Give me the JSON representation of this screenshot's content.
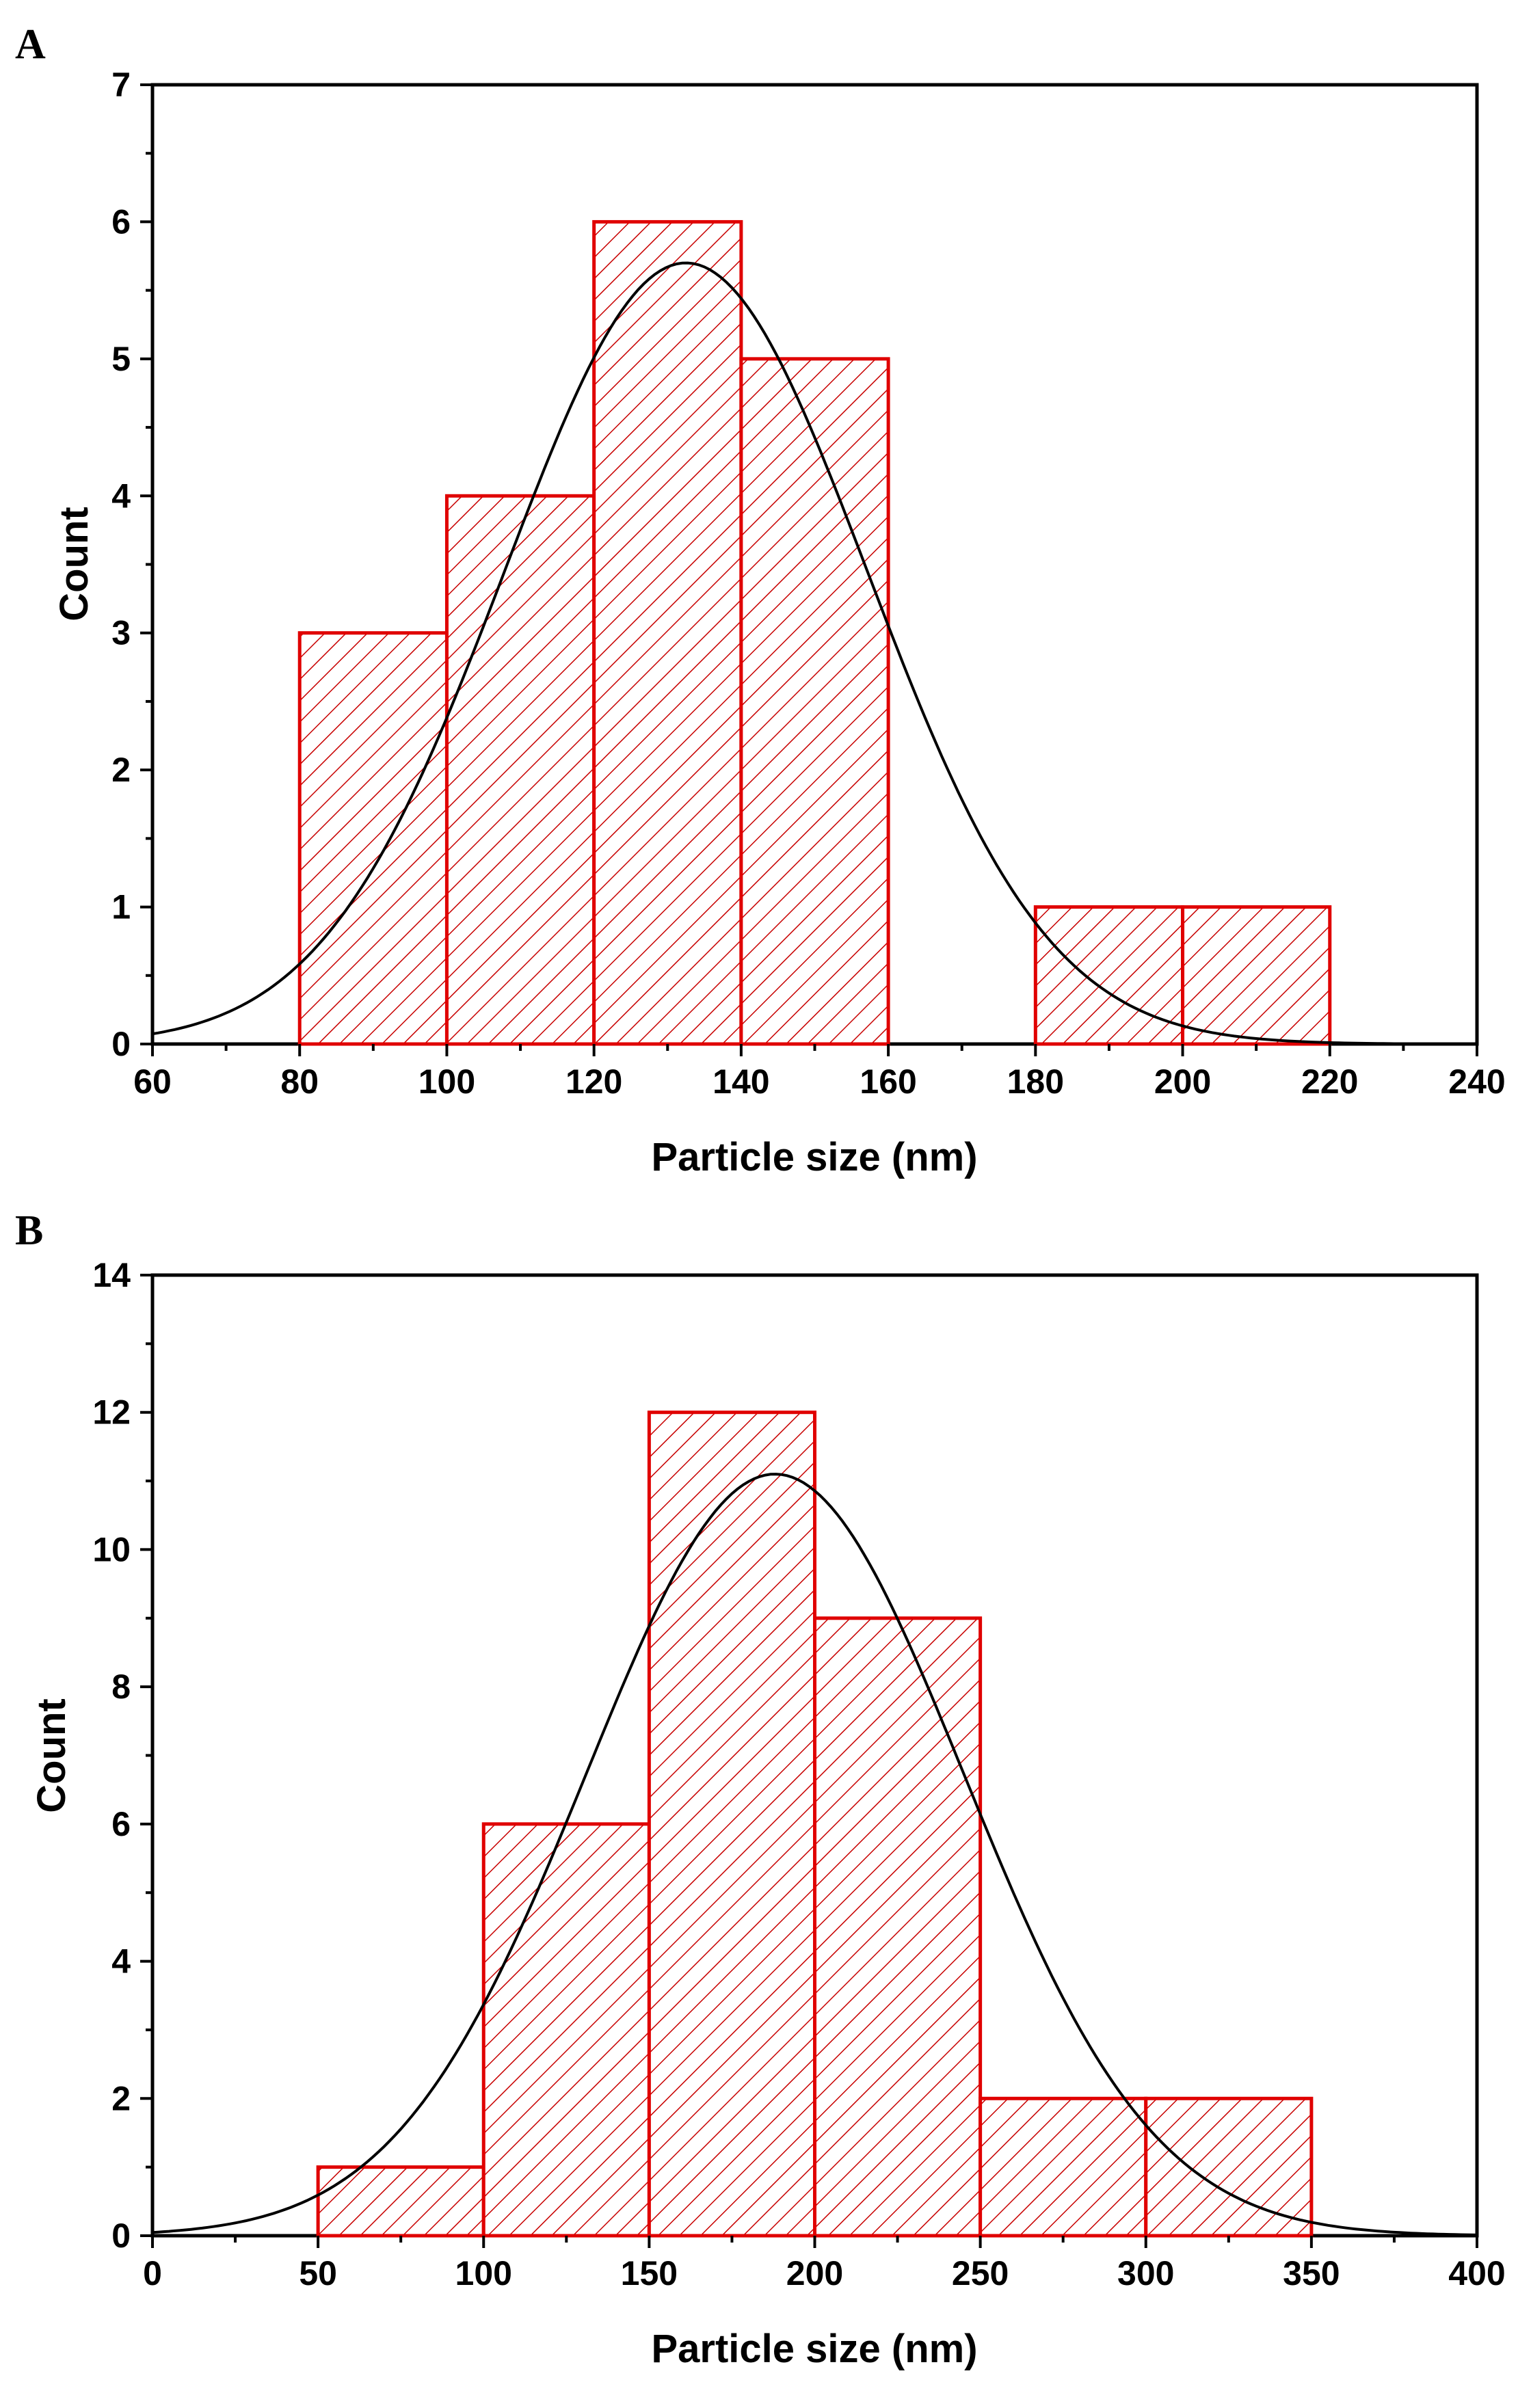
{
  "chart_data": [
    {
      "type": "bar",
      "panel_label": "A",
      "title": "",
      "xlabel": "Particle size (nm)",
      "ylabel": "Count",
      "xlim": [
        60,
        240
      ],
      "ylim": [
        0,
        7
      ],
      "xticks": [
        60,
        80,
        100,
        120,
        140,
        160,
        180,
        200,
        220,
        240
      ],
      "yticks": [
        0,
        1,
        2,
        3,
        4,
        5,
        6,
        7
      ],
      "bins": [
        {
          "start": 80,
          "end": 100,
          "count": 3
        },
        {
          "start": 100,
          "end": 120,
          "count": 4
        },
        {
          "start": 120,
          "end": 140,
          "count": 6
        },
        {
          "start": 140,
          "end": 160,
          "count": 5
        },
        {
          "start": 180,
          "end": 200,
          "count": 1
        },
        {
          "start": 200,
          "end": 220,
          "count": 1
        }
      ],
      "fit": {
        "type": "normal",
        "mean": 132.5,
        "sd": 24.6,
        "peak": 5.7
      },
      "bar_color": "#e00000",
      "fit_color": "#000000"
    },
    {
      "type": "bar",
      "panel_label": "B",
      "title": "",
      "xlabel": "Particle size (nm)",
      "ylabel": "Count",
      "xlim": [
        0,
        400
      ],
      "ylim": [
        0,
        14
      ],
      "xticks": [
        0,
        50,
        100,
        150,
        200,
        250,
        300,
        350,
        400
      ],
      "yticks": [
        0,
        2,
        4,
        6,
        8,
        10,
        12,
        14
      ],
      "bins": [
        {
          "start": 50,
          "end": 100,
          "count": 1
        },
        {
          "start": 100,
          "end": 150,
          "count": 6
        },
        {
          "start": 150,
          "end": 200,
          "count": 12
        },
        {
          "start": 200,
          "end": 250,
          "count": 9
        },
        {
          "start": 250,
          "end": 300,
          "count": 2
        },
        {
          "start": 300,
          "end": 350,
          "count": 2
        }
      ],
      "fit": {
        "type": "normal",
        "mean": 188,
        "sd": 57,
        "peak": 11.1
      },
      "bar_color": "#e00000",
      "fit_color": "#000000"
    }
  ]
}
